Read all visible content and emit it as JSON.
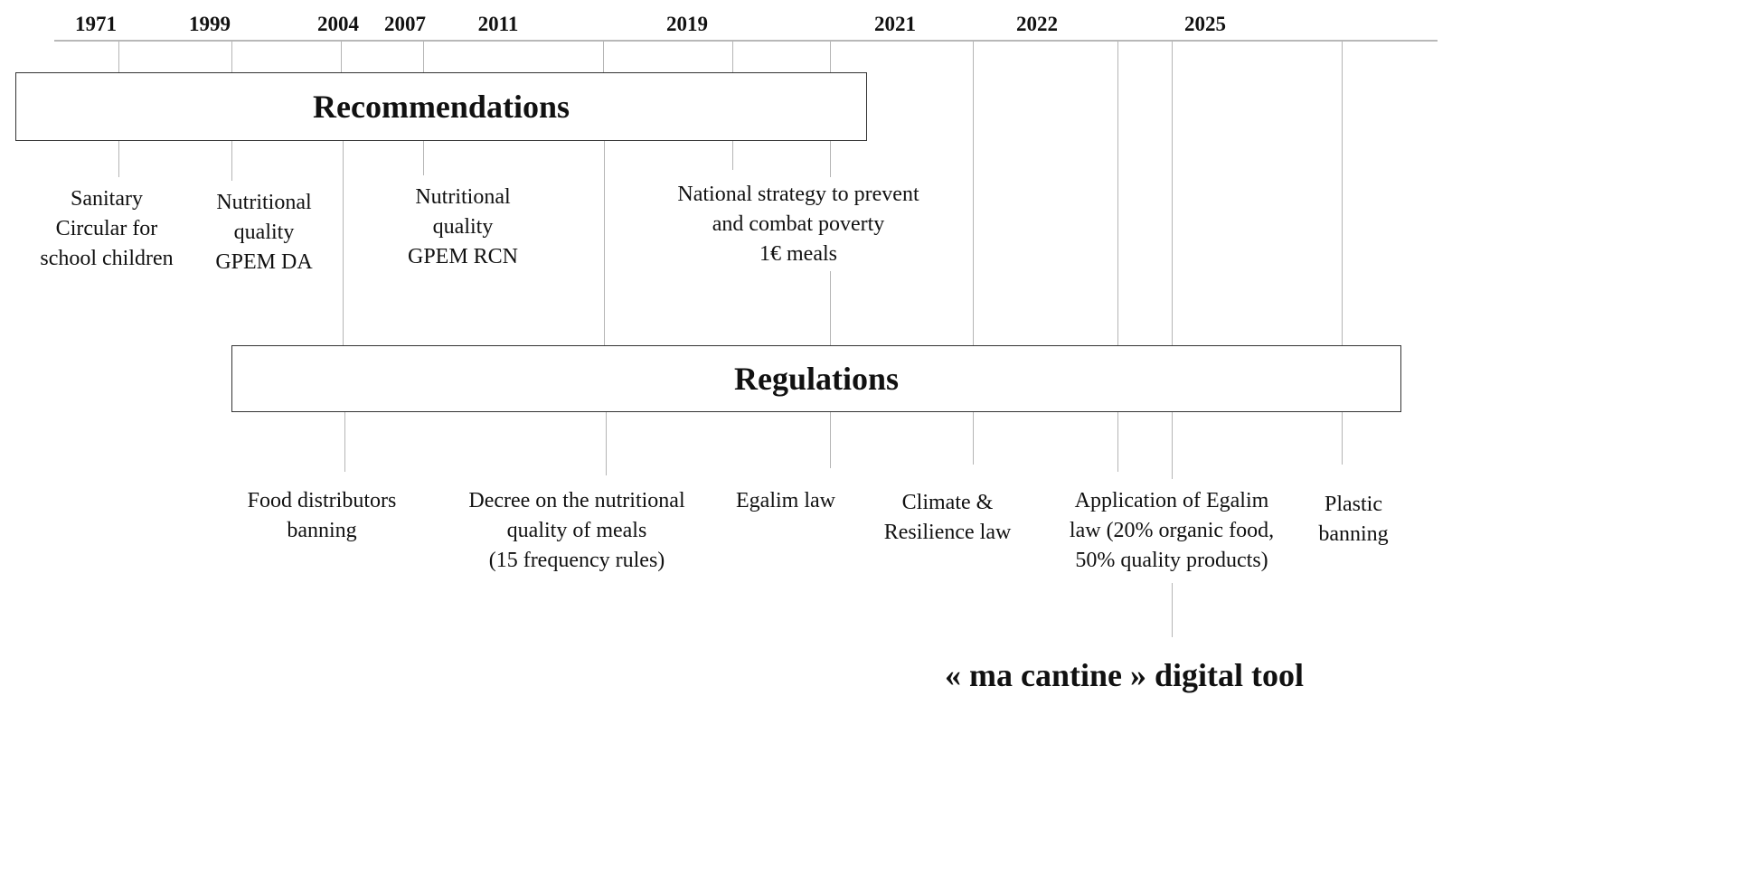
{
  "timeline": {
    "years": [
      "1971",
      "1999",
      "2004",
      "2007",
      "2011",
      "2019",
      "2021",
      "2022",
      "2025"
    ]
  },
  "boxes": {
    "recommendations": "Recommendations",
    "regulations": "Regulations"
  },
  "recommendations_items": {
    "sanitary_circular": [
      "Sanitary",
      "Circular for",
      "school children"
    ],
    "gpem_da": [
      "Nutritional",
      "quality",
      "GPEM DA"
    ],
    "gpem_rcn": [
      "Nutritional",
      "quality",
      "GPEM RCN"
    ],
    "poverty_strategy": [
      "National strategy to prevent",
      "and combat poverty",
      "1€ meals"
    ]
  },
  "regulations_items": {
    "food_distributors": [
      "Food distributors",
      "banning"
    ],
    "decree": [
      "Decree on the nutritional",
      "quality of meals",
      "(15 frequency rules)"
    ],
    "egalim": [
      "Egalim law"
    ],
    "climate": [
      "Climate &",
      "Resilience law"
    ],
    "egalim_application": [
      "Application of Egalim",
      "law (20% organic food,",
      "50% quality products)"
    ],
    "plastic": [
      "Plastic",
      "banning"
    ]
  },
  "tool": {
    "label": "« ma cantine » digital tool"
  }
}
